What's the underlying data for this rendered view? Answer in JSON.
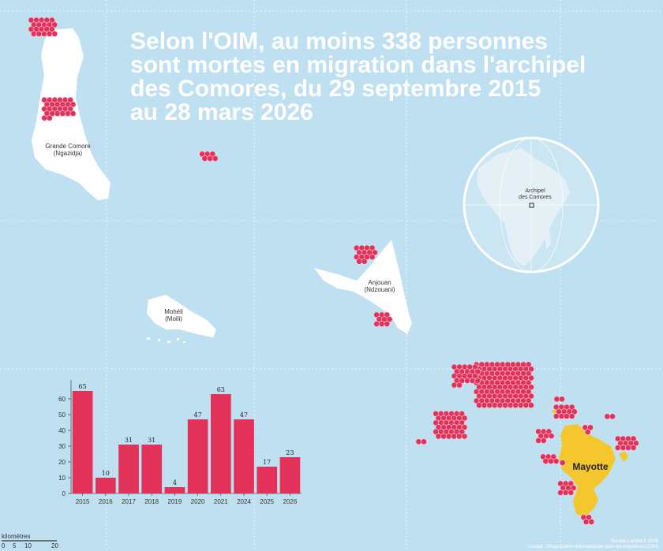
{
  "title": {
    "line1": "Selon l'OIM, au moins 338 personnes",
    "line2": "sont mortes en migration dans l'archipel",
    "line3": "des Comores, du 29 septembre 2015",
    "line4": "au 28 mars 2026"
  },
  "islands": {
    "grande_comore": {
      "name": "Grande Comore",
      "alt": "(Ngazidja)"
    },
    "moheli": {
      "name": "Mohéli",
      "alt": "(Moili)"
    },
    "anjouan": {
      "name": "Anjouan",
      "alt": "(Ndzouani)"
    },
    "mayotte": {
      "name": "Mayotte"
    }
  },
  "globe": {
    "line1": "Archipel",
    "line2": "des Comores"
  },
  "scale": {
    "unit": "kilomètres",
    "ticks": [
      "0",
      "5",
      "10",
      "20"
    ]
  },
  "credit": {
    "author": "Nicolas Lambert, 2026",
    "source": "Source : Organisation internationale pour les migrations (OIM)"
  },
  "colors": {
    "sea": "#bfe0f0",
    "land": "#ffffff",
    "mayotte": "#f4c72e",
    "dots": "#e0325b",
    "bars": "#e3325a"
  },
  "chart_data": {
    "type": "bar",
    "categories": [
      "2015",
      "2016",
      "2017",
      "2018",
      "2019",
      "2020",
      "2021",
      "2024",
      "2025",
      "2026"
    ],
    "values": [
      65,
      10,
      31,
      31,
      4,
      47,
      63,
      47,
      17,
      23
    ],
    "yticks": [
      0,
      10,
      20,
      30,
      40,
      50,
      60
    ],
    "ylim": [
      0,
      70
    ],
    "title": "",
    "xlabel": "",
    "ylabel": ""
  }
}
